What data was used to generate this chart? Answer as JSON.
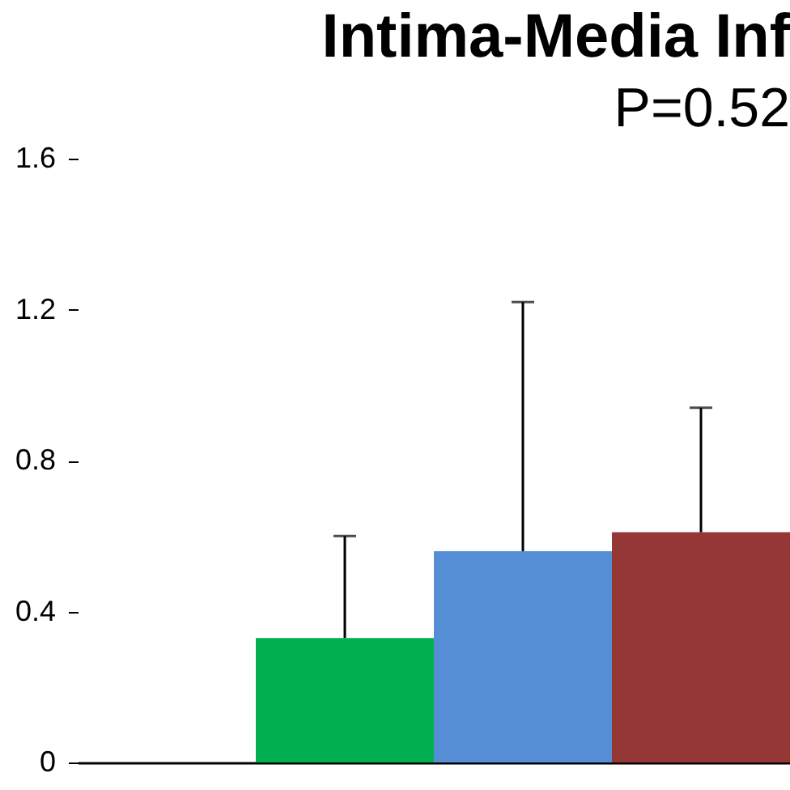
{
  "chart_data": {
    "type": "bar",
    "title": "Intima-Media Inf",
    "subtitle": "P=0.52",
    "categories": [
      null,
      null,
      null
    ],
    "values": [
      0.33,
      0.56,
      0.61
    ],
    "colors": [
      "#00b050",
      "#558ed5",
      "#953735"
    ],
    "errors": [
      [
        0.33,
        0.6
      ],
      [
        0.56,
        1.22
      ],
      [
        0.61,
        0.94
      ]
    ],
    "ylim": [
      0,
      1.6
    ],
    "yticks": [
      0,
      0.4,
      0.8,
      1.2,
      1.6
    ]
  }
}
